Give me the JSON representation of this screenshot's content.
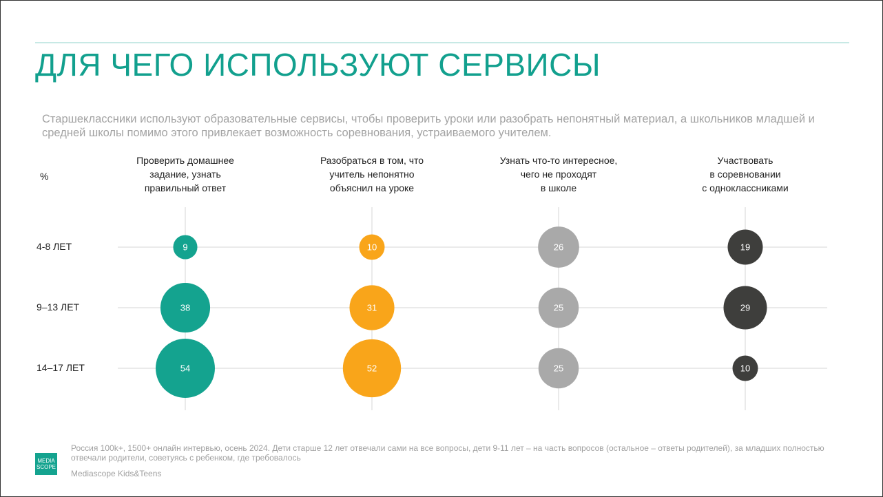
{
  "title": "ДЛЯ ЧЕГО ИСПОЛЬЗУЮТ СЕРВИСЫ",
  "subtitle": "Старшеклассники используют образовательные сервисы, чтобы проверить уроки или разобрать непонятный материал, а школьников младшей и средней школы помимо этого привлекает возможность соревнования, устраиваемого учителем.",
  "chart_data": {
    "type": "bubble",
    "unit_label": "%",
    "categories": [
      "4-8 ЛЕТ",
      "9–13 ЛЕТ",
      "14–17 ЛЕТ"
    ],
    "series": [
      {
        "name": "Проверить домашнее\nзадание, узнать\nправильный ответ",
        "color": "#14a38f",
        "values": [
          9,
          38,
          54
        ]
      },
      {
        "name": "Разобраться в том, что\nучитель непонятно\nобъяснил на уроке",
        "color": "#f9a51a",
        "values": [
          10,
          31,
          52
        ]
      },
      {
        "name": "Узнать что-то интересное,\nчего не проходят\nв школе",
        "color": "#a9a9a9",
        "values": [
          26,
          25,
          25
        ]
      },
      {
        "name": "Участвовать\nв соревновании\nс одноклассниками",
        "color": "#3e3e3c",
        "values": [
          19,
          29,
          10
        ]
      }
    ]
  },
  "footnote": "Россия 100k+, 1500+ онлайн интервью, осень 2024. Дети старше 12 лет отвечали сами на все вопросы, дети 9-11 лет – на часть вопросов (остальное – ответы родителей), за младших полностью отвечали родители, советуясь с ребенком, где требовалось",
  "logo": "MEDIA\nSCOPE",
  "source": "Mediascope Kids&Teens"
}
